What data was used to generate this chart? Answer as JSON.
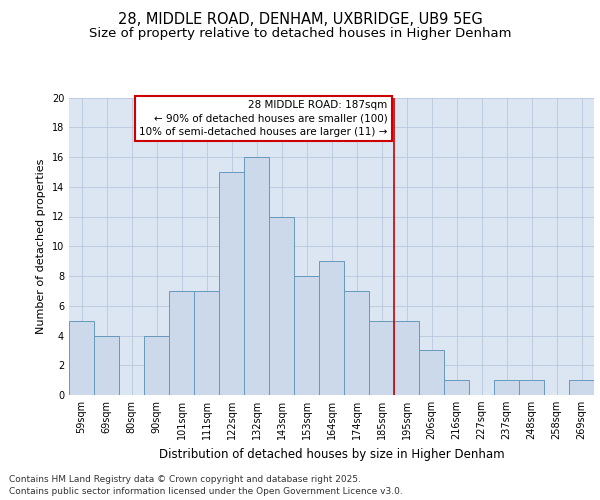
{
  "title_line1": "28, MIDDLE ROAD, DENHAM, UXBRIDGE, UB9 5EG",
  "title_line2": "Size of property relative to detached houses in Higher Denham",
  "xlabel": "Distribution of detached houses by size in Higher Denham",
  "ylabel": "Number of detached properties",
  "categories": [
    "59sqm",
    "69sqm",
    "80sqm",
    "90sqm",
    "101sqm",
    "111sqm",
    "122sqm",
    "132sqm",
    "143sqm",
    "153sqm",
    "164sqm",
    "174sqm",
    "185sqm",
    "195sqm",
    "206sqm",
    "216sqm",
    "227sqm",
    "237sqm",
    "248sqm",
    "258sqm",
    "269sqm"
  ],
  "values": [
    5,
    4,
    0,
    4,
    7,
    7,
    15,
    16,
    12,
    8,
    9,
    7,
    5,
    5,
    3,
    1,
    0,
    1,
    1,
    0,
    1
  ],
  "bar_color": "#ccd9ea",
  "bar_edge_color": "#6699bb",
  "bar_linewidth": 0.7,
  "grid_color": "#b8c8dc",
  "background_color": "#dce6f2",
  "figure_bg": "#ffffff",
  "vline_color": "#cc0000",
  "vline_x_index": 12.5,
  "annotation_text": "28 MIDDLE ROAD: 187sqm\n← 90% of detached houses are smaller (100)\n10% of semi-detached houses are larger (11) →",
  "annotation_box_edge": "#cc0000",
  "annotation_fill": "#ffffff",
  "ylim": [
    0,
    20
  ],
  "yticks": [
    0,
    2,
    4,
    6,
    8,
    10,
    12,
    14,
    16,
    18,
    20
  ],
  "footnote": "Contains HM Land Registry data © Crown copyright and database right 2025.\nContains public sector information licensed under the Open Government Licence v3.0.",
  "title_fontsize": 10.5,
  "subtitle_fontsize": 9.5,
  "xlabel_fontsize": 8.5,
  "ylabel_fontsize": 8,
  "tick_fontsize": 7,
  "annotation_fontsize": 7.5,
  "footnote_fontsize": 6.5
}
